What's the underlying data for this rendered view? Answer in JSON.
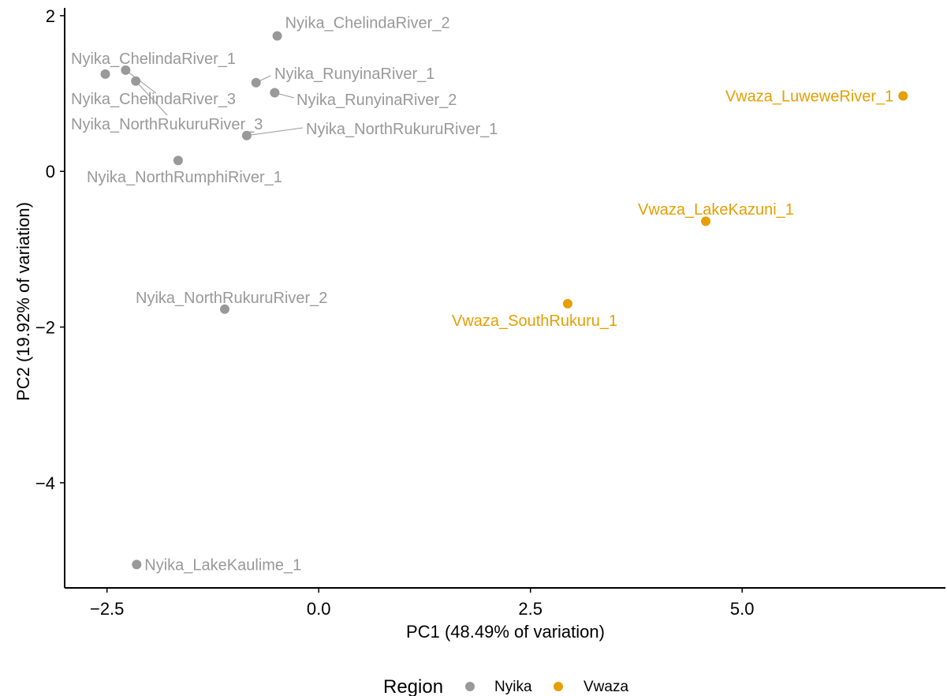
{
  "chart_data": {
    "type": "scatter",
    "xlabel": "PC1 (48.49% of variation)",
    "ylabel": "PC2 (19.92% of variation)",
    "xlim": [
      -3.0,
      7.4
    ],
    "ylim": [
      -5.35,
      2.1
    ],
    "x_ticks": [
      -2.5,
      0.0,
      2.5,
      5.0
    ],
    "x_tick_labels": [
      "−2.5",
      "0.0",
      "2.5",
      "5.0"
    ],
    "y_ticks": [
      -4,
      -2,
      0,
      2
    ],
    "y_tick_labels": [
      "−4",
      "−2",
      "0",
      "2"
    ],
    "grid": false,
    "legend": {
      "title": "Region",
      "placement": "bottom",
      "entries": [
        {
          "name": "Nyika",
          "color": "#999999"
        },
        {
          "name": "Vwaza",
          "color": "#E69F00"
        }
      ]
    },
    "series": [
      {
        "name": "Nyika",
        "color": "#999999",
        "points": [
          {
            "label": "Nyika_ChelindaRiver_2",
            "x": -0.49,
            "y": 1.74
          },
          {
            "label": "Nyika_ChelindaRiver_1",
            "x": -2.52,
            "y": 1.25
          },
          {
            "label": "Nyika_ChelindaRiver_3",
            "x": -2.28,
            "y": 1.3
          },
          {
            "label": "Nyika_NorthRukuruRiver_3",
            "x": -2.16,
            "y": 1.16
          },
          {
            "label": "Nyika_RunyinaRiver_1",
            "x": -0.74,
            "y": 1.14
          },
          {
            "label": "Nyika_RunyinaRiver_2",
            "x": -0.52,
            "y": 1.01
          },
          {
            "label": "Nyika_NorthRukuruRiver_1",
            "x": -0.85,
            "y": 0.46
          },
          {
            "label": "Nyika_NorthRumphiRiver_1",
            "x": -1.66,
            "y": 0.14
          },
          {
            "label": "Nyika_NorthRukuruRiver_2",
            "x": -1.11,
            "y": -1.77
          },
          {
            "label": "Nyika_LakeKaulime_1",
            "x": -2.15,
            "y": -5.05
          }
        ]
      },
      {
        "name": "Vwaza",
        "color": "#E69F00",
        "points": [
          {
            "label": "Vwaza_LuweweRiver_1",
            "x": 6.9,
            "y": 0.97
          },
          {
            "label": "Vwaza_LakeKazuni_1",
            "x": 4.57,
            "y": -0.64
          },
          {
            "label": "Vwaza_SouthRukuru_1",
            "x": 2.94,
            "y": -1.7
          }
        ]
      }
    ]
  }
}
